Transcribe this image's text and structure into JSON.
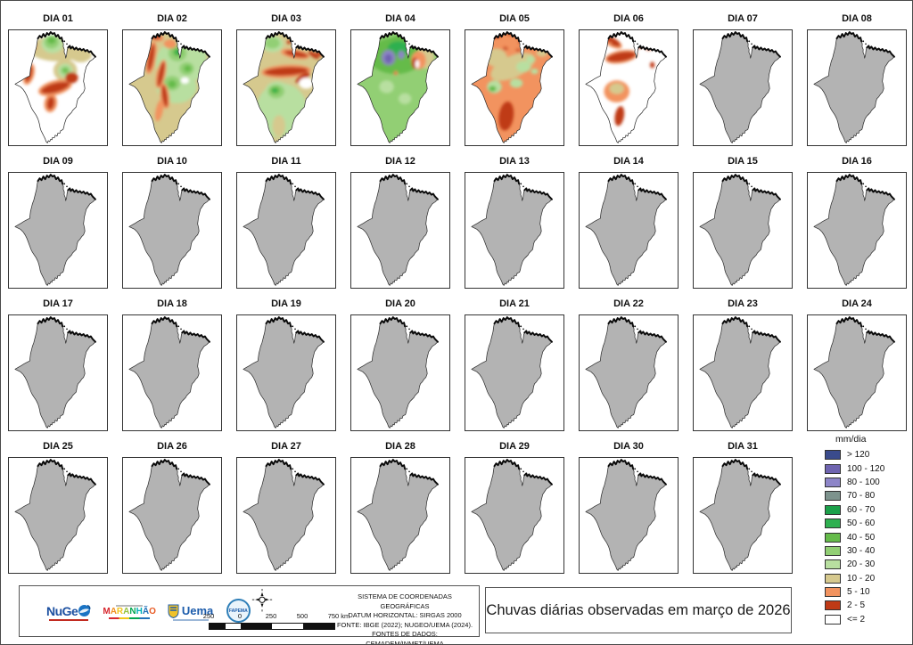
{
  "page": {
    "title_box": "Chuvas diárias observadas em março de 2026"
  },
  "days": [
    {
      "label": "DIA 01",
      "pattern": "day1"
    },
    {
      "label": "DIA 02",
      "pattern": "day2"
    },
    {
      "label": "DIA 03",
      "pattern": "day3"
    },
    {
      "label": "DIA 04",
      "pattern": "day4"
    },
    {
      "label": "DIA 05",
      "pattern": "day5"
    },
    {
      "label": "DIA 06",
      "pattern": "day6"
    },
    {
      "label": "DIA 07",
      "pattern": "gray"
    },
    {
      "label": "DIA 08",
      "pattern": "gray"
    },
    {
      "label": "DIA 09",
      "pattern": "gray"
    },
    {
      "label": "DIA 10",
      "pattern": "gray"
    },
    {
      "label": "DIA 11",
      "pattern": "gray"
    },
    {
      "label": "DIA 12",
      "pattern": "gray"
    },
    {
      "label": "DIA 13",
      "pattern": "gray"
    },
    {
      "label": "DIA 14",
      "pattern": "gray"
    },
    {
      "label": "DIA 15",
      "pattern": "gray"
    },
    {
      "label": "DIA 16",
      "pattern": "gray"
    },
    {
      "label": "DIA 17",
      "pattern": "gray"
    },
    {
      "label": "DIA 18",
      "pattern": "gray"
    },
    {
      "label": "DIA 19",
      "pattern": "gray"
    },
    {
      "label": "DIA 20",
      "pattern": "gray"
    },
    {
      "label": "DIA 21",
      "pattern": "gray"
    },
    {
      "label": "DIA 22",
      "pattern": "gray"
    },
    {
      "label": "DIA 23",
      "pattern": "gray"
    },
    {
      "label": "DIA 24",
      "pattern": "gray"
    },
    {
      "label": "DIA 25",
      "pattern": "gray"
    },
    {
      "label": "DIA 26",
      "pattern": "gray"
    },
    {
      "label": "DIA 27",
      "pattern": "gray"
    },
    {
      "label": "DIA 28",
      "pattern": "gray"
    },
    {
      "label": "DIA 29",
      "pattern": "gray"
    },
    {
      "label": "DIA 30",
      "pattern": "gray"
    },
    {
      "label": "DIA 31",
      "pattern": "gray"
    }
  ],
  "legend": {
    "title": "mm/dia",
    "items": [
      {
        "label": "> 120",
        "color": "#3A4B8C"
      },
      {
        "label": "100 - 120",
        "color": "#6F64B0"
      },
      {
        "label": "80 - 100",
        "color": "#8D85C8"
      },
      {
        "label": "70 - 80",
        "color": "#7D938D"
      },
      {
        "label": "60 - 70",
        "color": "#1CA04A"
      },
      {
        "label": "50 - 60",
        "color": "#2EB050"
      },
      {
        "label": "40 - 50",
        "color": "#65BB4A"
      },
      {
        "label": "30 - 40",
        "color": "#92CF74"
      },
      {
        "label": "20 - 30",
        "color": "#B8DFA0"
      },
      {
        "label": "10 - 20",
        "color": "#D6C98E"
      },
      {
        "label": "5 - 10",
        "color": "#F2935F"
      },
      {
        "label": "2 - 5",
        "color": "#BF3A16"
      },
      {
        "label": "<= 2",
        "color": "#FFFFFF"
      }
    ]
  },
  "credits": {
    "lines": [
      "SISTEMA DE COORDENADAS GEOGRÁFICAS",
      "DATUM HORIZONTAL: SIRGAS 2000",
      "FONTE: IBGE (2022); NUGEO/UEMA (2024).",
      "FONTES DE DADOS: CEMADEM/INMET/UEMA"
    ]
  },
  "scalebar": {
    "labels": [
      "250",
      "0",
      "250",
      "500",
      "750 km"
    ]
  },
  "logos": [
    {
      "name": "NuGeO",
      "text": "NuGe"
    },
    {
      "name": "MARANHÃO"
    },
    {
      "name": "Uema"
    },
    {
      "name": "FAPEMA"
    }
  ],
  "map": {
    "gray_fill": "#b3b3b3",
    "state_name": "Maranhão"
  }
}
